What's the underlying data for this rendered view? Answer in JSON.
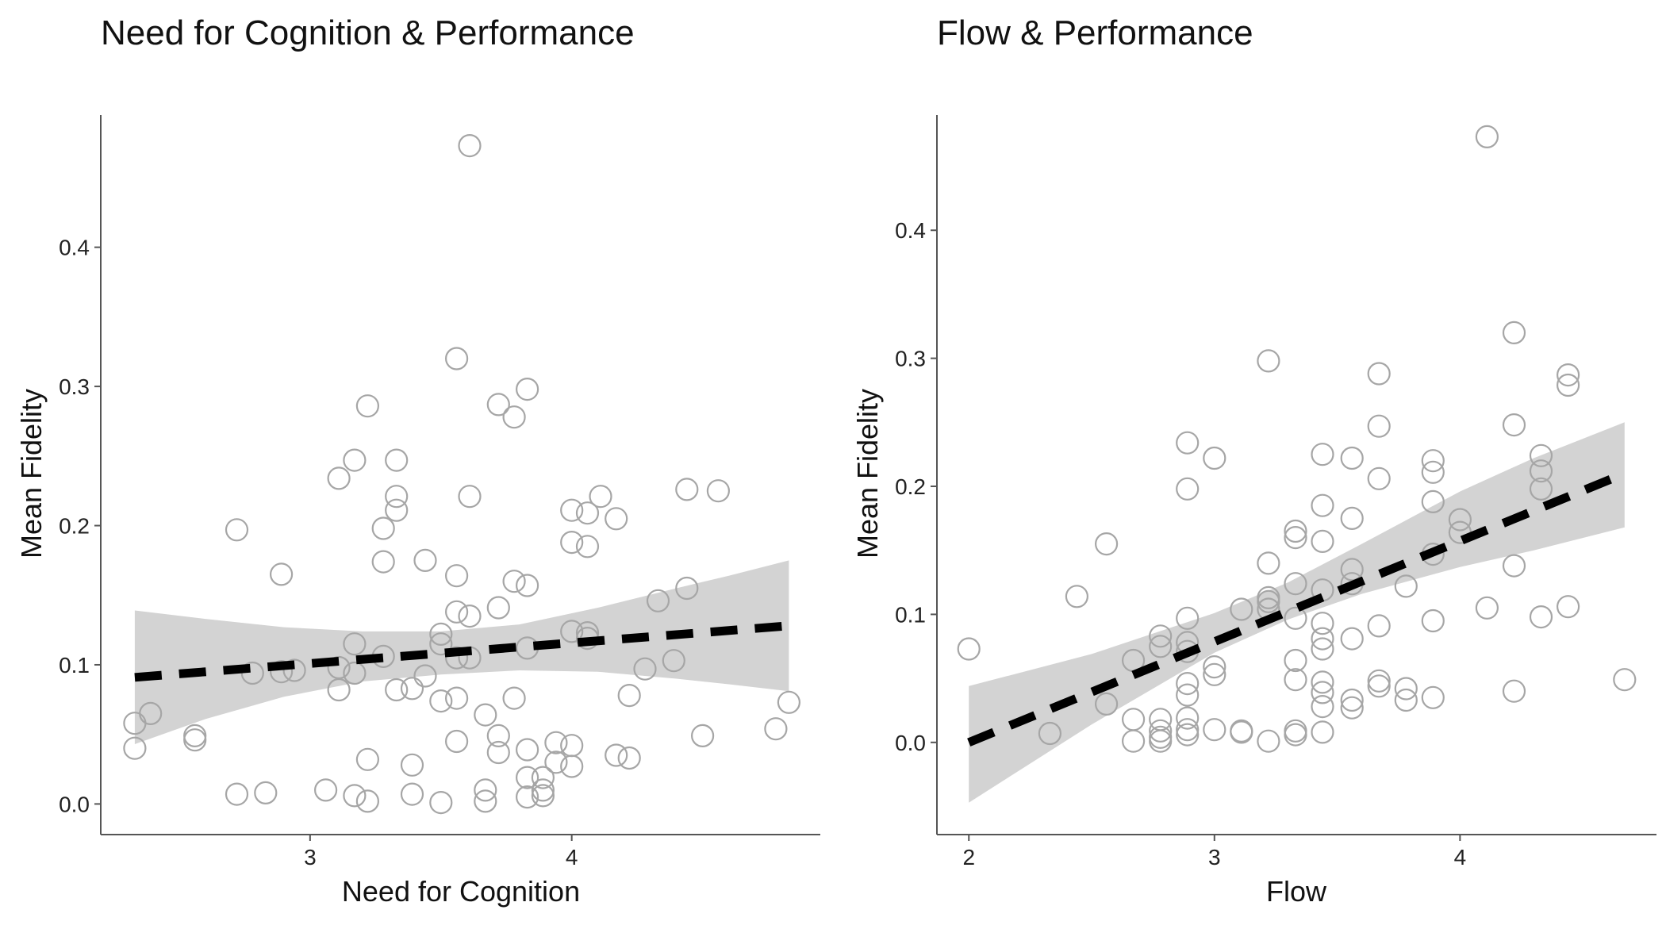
{
  "chart_data": [
    {
      "type": "scatter",
      "title": "Need for Cognition & Performance",
      "xlabel": "Need for Cognition",
      "ylabel": "Mean Fidelity",
      "xlim": [
        2.2,
        4.95
      ],
      "ylim": [
        -0.022,
        0.495
      ],
      "xticks": [
        3,
        4
      ],
      "yticks": [
        0.0,
        0.1,
        0.2,
        0.3,
        0.4
      ],
      "ytick_labels": [
        "0.0",
        "0.1",
        "0.2",
        "0.3",
        "0.4"
      ],
      "grid": false,
      "points": [
        [
          2.33,
          0.058
        ],
        [
          2.33,
          0.04
        ],
        [
          2.39,
          0.065
        ],
        [
          2.56,
          0.049
        ],
        [
          2.56,
          0.046
        ],
        [
          2.72,
          0.197
        ],
        [
          2.72,
          0.007
        ],
        [
          2.78,
          0.094
        ],
        [
          2.83,
          0.008
        ],
        [
          2.89,
          0.165
        ],
        [
          2.89,
          0.095
        ],
        [
          2.94,
          0.096
        ],
        [
          3.06,
          0.01
        ],
        [
          3.11,
          0.234
        ],
        [
          3.11,
          0.098
        ],
        [
          3.11,
          0.082
        ],
        [
          3.17,
          0.247
        ],
        [
          3.17,
          0.115
        ],
        [
          3.17,
          0.094
        ],
        [
          3.17,
          0.006
        ],
        [
          3.22,
          0.286
        ],
        [
          3.22,
          0.032
        ],
        [
          3.22,
          0.002
        ],
        [
          3.28,
          0.198
        ],
        [
          3.28,
          0.174
        ],
        [
          3.28,
          0.106
        ],
        [
          3.33,
          0.247
        ],
        [
          3.33,
          0.221
        ],
        [
          3.33,
          0.211
        ],
        [
          3.33,
          0.082
        ],
        [
          3.39,
          0.083
        ],
        [
          3.39,
          0.028
        ],
        [
          3.39,
          0.007
        ],
        [
          3.44,
          0.175
        ],
        [
          3.44,
          0.092
        ],
        [
          3.5,
          0.122
        ],
        [
          3.5,
          0.115
        ],
        [
          3.5,
          0.074
        ],
        [
          3.5,
          0.001
        ],
        [
          3.56,
          0.32
        ],
        [
          3.56,
          0.164
        ],
        [
          3.56,
          0.138
        ],
        [
          3.56,
          0.105
        ],
        [
          3.56,
          0.076
        ],
        [
          3.56,
          0.045
        ],
        [
          3.61,
          0.473
        ],
        [
          3.61,
          0.221
        ],
        [
          3.61,
          0.135
        ],
        [
          3.61,
          0.105
        ],
        [
          3.67,
          0.064
        ],
        [
          3.67,
          0.01
        ],
        [
          3.67,
          0.002
        ],
        [
          3.72,
          0.287
        ],
        [
          3.72,
          0.141
        ],
        [
          3.72,
          0.049
        ],
        [
          3.72,
          0.037
        ],
        [
          3.78,
          0.278
        ],
        [
          3.78,
          0.16
        ],
        [
          3.78,
          0.076
        ],
        [
          3.83,
          0.298
        ],
        [
          3.83,
          0.157
        ],
        [
          3.83,
          0.112
        ],
        [
          3.83,
          0.039
        ],
        [
          3.83,
          0.019
        ],
        [
          3.83,
          0.005
        ],
        [
          3.89,
          0.019
        ],
        [
          3.89,
          0.01
        ],
        [
          3.89,
          0.006
        ],
        [
          3.94,
          0.044
        ],
        [
          3.94,
          0.03
        ],
        [
          4.0,
          0.211
        ],
        [
          4.0,
          0.188
        ],
        [
          4.0,
          0.124
        ],
        [
          4.0,
          0.042
        ],
        [
          4.0,
          0.027
        ],
        [
          4.06,
          0.209
        ],
        [
          4.06,
          0.185
        ],
        [
          4.06,
          0.123
        ],
        [
          4.06,
          0.119
        ],
        [
          4.11,
          0.221
        ],
        [
          4.17,
          0.205
        ],
        [
          4.17,
          0.035
        ],
        [
          4.22,
          0.078
        ],
        [
          4.22,
          0.033
        ],
        [
          4.28,
          0.097
        ],
        [
          4.33,
          0.146
        ],
        [
          4.39,
          0.103
        ],
        [
          4.44,
          0.226
        ],
        [
          4.44,
          0.155
        ],
        [
          4.5,
          0.049
        ],
        [
          4.56,
          0.225
        ],
        [
          4.78,
          0.054
        ],
        [
          4.83,
          0.073
        ]
      ],
      "trend": {
        "x": [
          2.33,
          4.83
        ],
        "y": [
          0.091,
          0.128
        ]
      },
      "ribbon": {
        "x": [
          2.33,
          2.6,
          2.9,
          3.2,
          3.5,
          3.8,
          4.1,
          4.4,
          4.6,
          4.83
        ],
        "lower": [
          0.043,
          0.061,
          0.077,
          0.088,
          0.093,
          0.096,
          0.095,
          0.09,
          0.086,
          0.081
        ],
        "upper": [
          0.139,
          0.133,
          0.127,
          0.124,
          0.124,
          0.129,
          0.141,
          0.155,
          0.164,
          0.175
        ]
      }
    },
    {
      "type": "scatter",
      "title": "Flow & Performance",
      "xlabel": "Flow",
      "ylabel": "Mean Fidelity",
      "xlim": [
        1.87,
        4.8
      ],
      "ylim": [
        -0.072,
        0.49
      ],
      "xticks": [
        2,
        3,
        4
      ],
      "yticks": [
        0.0,
        0.1,
        0.2,
        0.3,
        0.4
      ],
      "ytick_labels": [
        "0.0",
        "0.1",
        "0.2",
        "0.3",
        "0.4"
      ],
      "grid": false,
      "points": [
        [
          2.0,
          0.073
        ],
        [
          2.33,
          0.007
        ],
        [
          2.44,
          0.114
        ],
        [
          2.56,
          0.155
        ],
        [
          2.56,
          0.03
        ],
        [
          2.67,
          0.064
        ],
        [
          2.67,
          0.018
        ],
        [
          2.67,
          0.001
        ],
        [
          2.78,
          0.083
        ],
        [
          2.78,
          0.075
        ],
        [
          2.78,
          0.018
        ],
        [
          2.78,
          0.009
        ],
        [
          2.78,
          0.004
        ],
        [
          2.78,
          0.001
        ],
        [
          2.89,
          0.234
        ],
        [
          2.89,
          0.198
        ],
        [
          2.89,
          0.097
        ],
        [
          2.89,
          0.078
        ],
        [
          2.89,
          0.071
        ],
        [
          2.89,
          0.046
        ],
        [
          2.89,
          0.037
        ],
        [
          2.89,
          0.019
        ],
        [
          2.89,
          0.01
        ],
        [
          2.89,
          0.006
        ],
        [
          3.0,
          0.222
        ],
        [
          3.0,
          0.059
        ],
        [
          3.0,
          0.053
        ],
        [
          3.0,
          0.01
        ],
        [
          3.11,
          0.104
        ],
        [
          3.11,
          0.009
        ],
        [
          3.11,
          0.008
        ],
        [
          3.22,
          0.298
        ],
        [
          3.22,
          0.14
        ],
        [
          3.22,
          0.113
        ],
        [
          3.22,
          0.11
        ],
        [
          3.22,
          0.104
        ],
        [
          3.22,
          0.001
        ],
        [
          3.33,
          0.165
        ],
        [
          3.33,
          0.16
        ],
        [
          3.33,
          0.124
        ],
        [
          3.33,
          0.097
        ],
        [
          3.33,
          0.064
        ],
        [
          3.33,
          0.049
        ],
        [
          3.33,
          0.009
        ],
        [
          3.33,
          0.006
        ],
        [
          3.44,
          0.225
        ],
        [
          3.44,
          0.185
        ],
        [
          3.44,
          0.157
        ],
        [
          3.44,
          0.119
        ],
        [
          3.44,
          0.093
        ],
        [
          3.44,
          0.081
        ],
        [
          3.44,
          0.073
        ],
        [
          3.44,
          0.047
        ],
        [
          3.44,
          0.039
        ],
        [
          3.44,
          0.028
        ],
        [
          3.44,
          0.008
        ],
        [
          3.56,
          0.222
        ],
        [
          3.56,
          0.175
        ],
        [
          3.56,
          0.135
        ],
        [
          3.56,
          0.124
        ],
        [
          3.56,
          0.081
        ],
        [
          3.56,
          0.033
        ],
        [
          3.56,
          0.027
        ],
        [
          3.67,
          0.288
        ],
        [
          3.67,
          0.247
        ],
        [
          3.67,
          0.206
        ],
        [
          3.67,
          0.091
        ],
        [
          3.67,
          0.048
        ],
        [
          3.67,
          0.044
        ],
        [
          3.78,
          0.122
        ],
        [
          3.78,
          0.042
        ],
        [
          3.78,
          0.033
        ],
        [
          3.89,
          0.22
        ],
        [
          3.89,
          0.211
        ],
        [
          3.89,
          0.188
        ],
        [
          3.89,
          0.147
        ],
        [
          3.89,
          0.095
        ],
        [
          3.89,
          0.035
        ],
        [
          4.0,
          0.174
        ],
        [
          4.0,
          0.164
        ],
        [
          4.11,
          0.473
        ],
        [
          4.11,
          0.105
        ],
        [
          4.22,
          0.32
        ],
        [
          4.22,
          0.248
        ],
        [
          4.22,
          0.138
        ],
        [
          4.22,
          0.04
        ],
        [
          4.33,
          0.224
        ],
        [
          4.33,
          0.212
        ],
        [
          4.33,
          0.198
        ],
        [
          4.33,
          0.098
        ],
        [
          4.44,
          0.287
        ],
        [
          4.44,
          0.279
        ],
        [
          4.44,
          0.106
        ],
        [
          4.67,
          0.049
        ]
      ],
      "trend": {
        "x": [
          2.0,
          4.67
        ],
        "y": [
          0.0,
          0.21
        ]
      },
      "ribbon": {
        "x": [
          2.0,
          2.5,
          3.0,
          3.3,
          3.6,
          4.0,
          4.3,
          4.67
        ],
        "lower": [
          -0.047,
          0.014,
          0.07,
          0.096,
          0.116,
          0.137,
          0.15,
          0.168
        ],
        "upper": [
          0.044,
          0.069,
          0.101,
          0.125,
          0.155,
          0.196,
          0.222,
          0.25
        ]
      }
    }
  ]
}
